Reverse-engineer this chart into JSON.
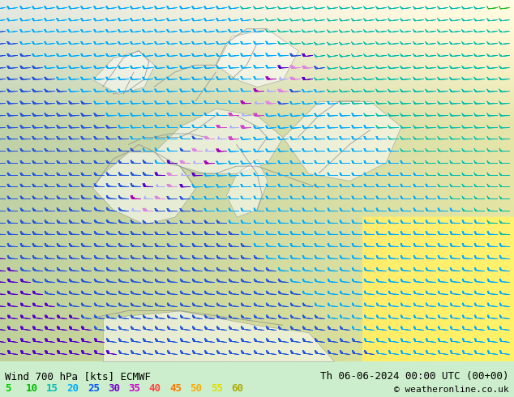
{
  "title_left": "Wind 700 hPa [kts] ECMWF",
  "title_right": "Th 06-06-2024 00:00 UTC (00+00)",
  "copyright": "© weatheronline.co.uk",
  "legend_values": [
    5,
    10,
    15,
    20,
    25,
    30,
    35,
    40,
    45,
    50,
    55,
    60
  ],
  "legend_colors": [
    "#00cc00",
    "#00bb00",
    "#00bbbb",
    "#00aaff",
    "#0055ff",
    "#7700cc",
    "#cc00cc",
    "#ff4444",
    "#ff7700",
    "#ffaa00",
    "#dddd00",
    "#aaaa00"
  ],
  "bg_color": "#aaddaa",
  "figsize": [
    6.34,
    4.9
  ],
  "dpi": 100,
  "speed_colors": [
    [
      5,
      "#33cc33"
    ],
    [
      10,
      "#22bb22"
    ],
    [
      15,
      "#00bbaa"
    ],
    [
      20,
      "#00aaff"
    ],
    [
      25,
      "#2255dd"
    ],
    [
      30,
      "#5500cc"
    ],
    [
      35,
      "#aa00bb"
    ],
    [
      40,
      "#cc44cc"
    ],
    [
      45,
      "#dd88dd"
    ],
    [
      50,
      "#aaaaff"
    ],
    [
      55,
      "#8888ff"
    ],
    [
      60,
      "#4444ff"
    ]
  ],
  "text_color": "#000000",
  "title_fontsize": 9,
  "legend_fontsize": 9
}
